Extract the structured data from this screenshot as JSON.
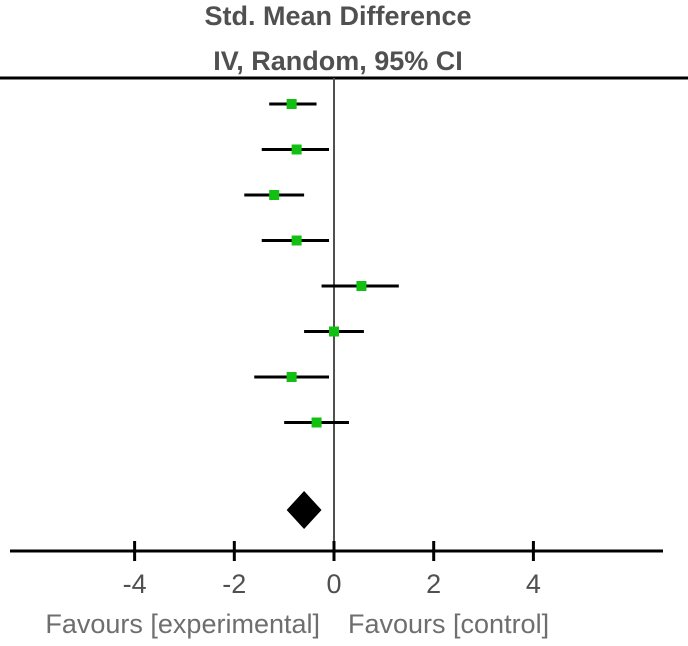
{
  "chart_data": {
    "type": "forest",
    "title": "Std. Mean Difference",
    "subtitle": "IV, Random, 95% CI",
    "xlim": [
      -6.5,
      6.6
    ],
    "xticks": [
      -4,
      -2,
      0,
      2,
      4
    ],
    "xtick_labels": [
      "-4",
      "-2",
      "0",
      "2",
      "4"
    ],
    "favours_left": "Favours [experimental]",
    "favours_right": "Favours [control]",
    "studies": [
      {
        "estimate": -0.85,
        "ci_low": -1.3,
        "ci_high": -0.35
      },
      {
        "estimate": -0.75,
        "ci_low": -1.45,
        "ci_high": -0.1
      },
      {
        "estimate": -1.2,
        "ci_low": -1.8,
        "ci_high": -0.6
      },
      {
        "estimate": -0.75,
        "ci_low": -1.45,
        "ci_high": -0.1
      },
      {
        "estimate": 0.55,
        "ci_low": -0.25,
        "ci_high": 1.3
      },
      {
        "estimate": 0.0,
        "ci_low": -0.6,
        "ci_high": 0.6
      },
      {
        "estimate": -0.85,
        "ci_low": -1.6,
        "ci_high": -0.1
      },
      {
        "estimate": -0.35,
        "ci_low": -1.0,
        "ci_high": 0.3
      }
    ],
    "pooled": {
      "estimate": -0.6,
      "ci_low": -0.95,
      "ci_high": -0.25
    },
    "marker_color": "#12c012",
    "line_color": "#000000",
    "axis_color": "#505050"
  }
}
